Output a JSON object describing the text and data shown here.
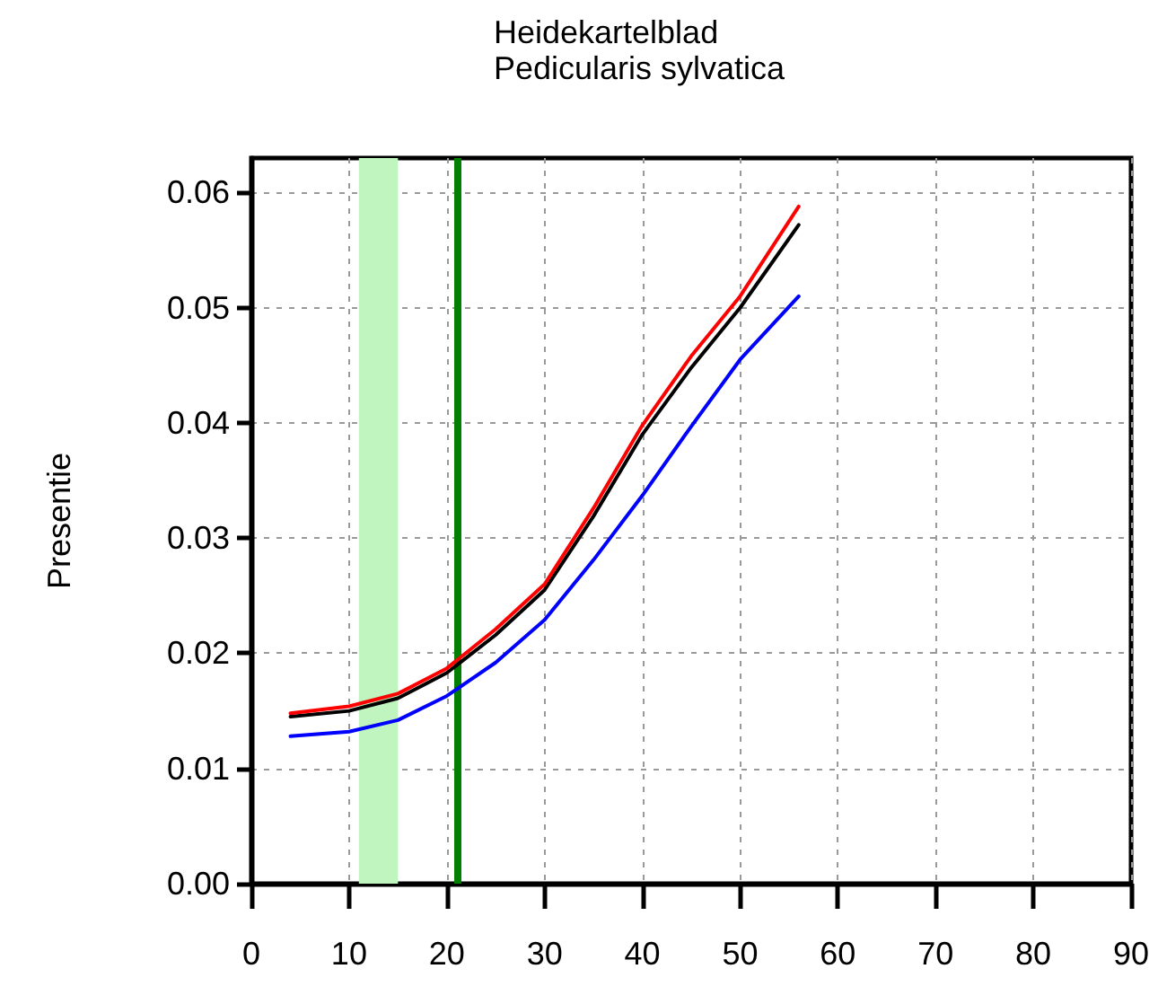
{
  "chart_data": {
    "type": "line",
    "title": "Heidekartelblad",
    "subtitle": "Pedicularis sylvatica",
    "ylabel": "Presentie",
    "xlim": [
      0,
      90
    ],
    "xticks": [
      0,
      10,
      20,
      30,
      40,
      50,
      60,
      70,
      80,
      90
    ],
    "ylim": [
      0,
      0.063
    ],
    "yticks": [
      {
        "value": 0,
        "label": "0.00"
      },
      0.01,
      0.02,
      0.03,
      0.04,
      0.05,
      0.06
    ],
    "grid": true,
    "line_style": "solid",
    "marker": "none",
    "x": [
      4,
      10,
      15,
      20,
      25,
      30,
      35,
      40,
      45,
      50,
      56
    ],
    "series": [
      {
        "color": "#0000ff",
        "values": [
          0.0128,
          0.0132,
          0.0142,
          0.0163,
          0.0192,
          0.0229,
          0.0281,
          0.0337,
          0.0397,
          0.0455,
          0.051
        ]
      },
      {
        "color": "#000000",
        "values": [
          0.0145,
          0.015,
          0.0161,
          0.0183,
          0.0216,
          0.0255,
          0.0319,
          0.039,
          0.0448,
          0.05,
          0.0572
        ]
      },
      {
        "color": "#ff0000",
        "values": [
          0.0148,
          0.0154,
          0.0165,
          0.0187,
          0.0221,
          0.026,
          0.0326,
          0.0398,
          0.0458,
          0.051,
          0.0588
        ]
      }
    ],
    "bands": [
      {
        "axis": "x",
        "from": 11,
        "to": 15,
        "color": "#c0f5c0"
      }
    ],
    "ref_lines": [
      {
        "axis": "x",
        "value": 21,
        "color": "#007f00",
        "line_style": "solid"
      }
    ]
  }
}
